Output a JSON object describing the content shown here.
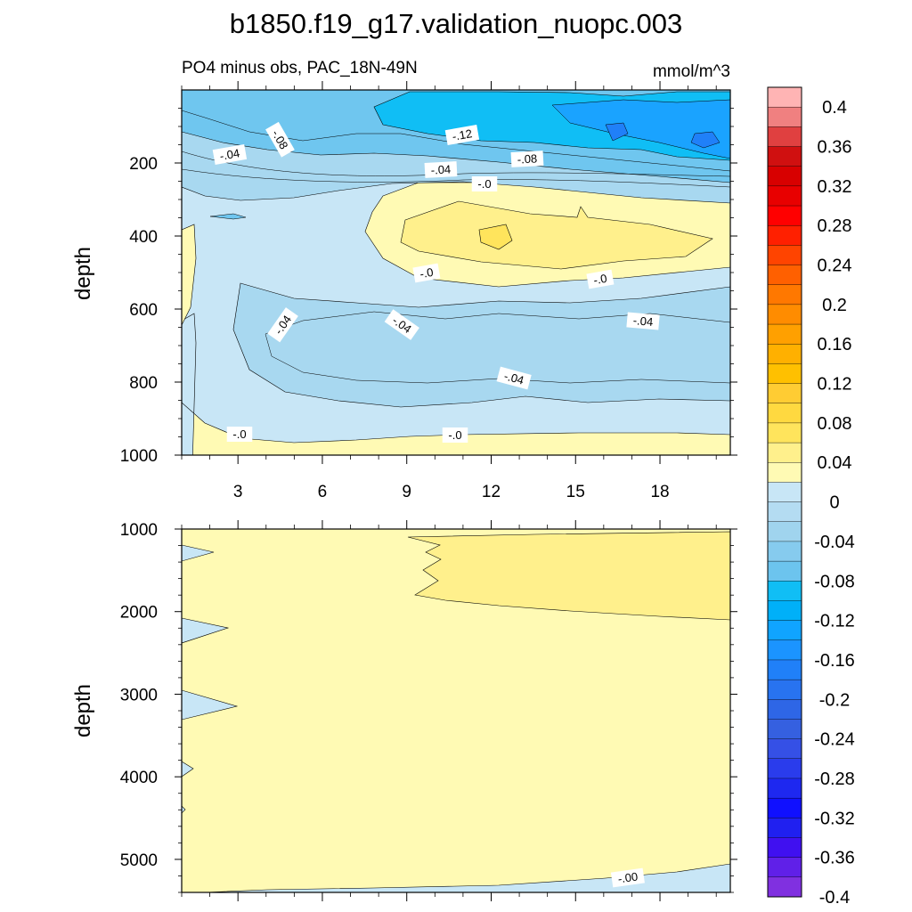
{
  "title": "b1850.f19_g17.validation_nuopc.003",
  "chart_data": [
    {
      "type": "heatmap",
      "subtitle_left": "PO4 minus obs, PAC_18N-49N",
      "subtitle_right": "mmol/m^3",
      "ylabel": "depth",
      "xlim": [
        1,
        20.5
      ],
      "ylim": [
        1000,
        0
      ],
      "x_ticks": [
        "3",
        "6",
        "9",
        "12",
        "15",
        "18"
      ],
      "y_ticks": [
        "200",
        "400",
        "600",
        "800",
        "1000"
      ],
      "contour_labels": [
        "-.08",
        "-.04",
        "-.12",
        "-.04",
        "-.08",
        "-.0",
        "-.0",
        "-.0",
        "-.04",
        "-.04",
        "-.04",
        "-.04",
        "-.0",
        "-.0"
      ],
      "colors": {
        "band_0_0.04": "#fffab4",
        "band_0.04_0.08": "#fff08c",
        "band_0.08_0.12": "#ffe45c",
        "band_neg0.04_0": "#c8e6f6",
        "band_neg0.08_neg0.04": "#a8d8f0",
        "band_neg0.12_neg0.08": "#6fc6ef",
        "band_neg0.16_neg0.12": "#10bef5",
        "band_neg0.2_neg0.16": "#1aa3ff"
      }
    },
    {
      "type": "heatmap",
      "ylabel": "depth",
      "xlim": [
        1,
        20.5
      ],
      "ylim": [
        1000,
        5400
      ],
      "y_ticks": [
        "1000",
        "2000",
        "3000",
        "4000",
        "5000"
      ],
      "contour_labels": [
        "-.00"
      ],
      "colors": {
        "band_0_0.04": "#fffab4",
        "band_0.04_0.08": "#fff08c",
        "band_neg0.04_0": "#c8e6f6"
      }
    }
  ],
  "colorbar": {
    "labels": [
      "0.4",
      "0.36",
      "0.32",
      "0.28",
      "0.24",
      "0.2",
      "0.16",
      "0.12",
      "0.08",
      "0.04",
      "0",
      "-0.04",
      "-0.08",
      "-0.12",
      "-0.16",
      "-0.2",
      "-0.24",
      "-0.28",
      "-0.32",
      "-0.36",
      "-0.4"
    ],
    "colors": [
      "#ffb4b4",
      "#f08080",
      "#e04040",
      "#d01010",
      "#d80000",
      "#e80000",
      "#ff0000",
      "#ff2000",
      "#ff4400",
      "#ff6000",
      "#ff7800",
      "#ff8c00",
      "#ffa000",
      "#ffb000",
      "#ffc000",
      "#ffcc33",
      "#ffd940",
      "#ffe45c",
      "#fff08c",
      "#fffab4",
      "#c8e6f6",
      "#b4dcf2",
      "#a0d4ee",
      "#86cbee",
      "#6cc4ee",
      "#10bef5",
      "#00b0f8",
      "#10a4ff",
      "#1b94ff",
      "#2080f8",
      "#2873f0",
      "#2e66e6",
      "#3560e0",
      "#3550e6",
      "#2a3cec",
      "#1e28f0",
      "#1010ff",
      "#2020f0",
      "#4010f0",
      "#6020e8",
      "#8030e0"
    ]
  }
}
